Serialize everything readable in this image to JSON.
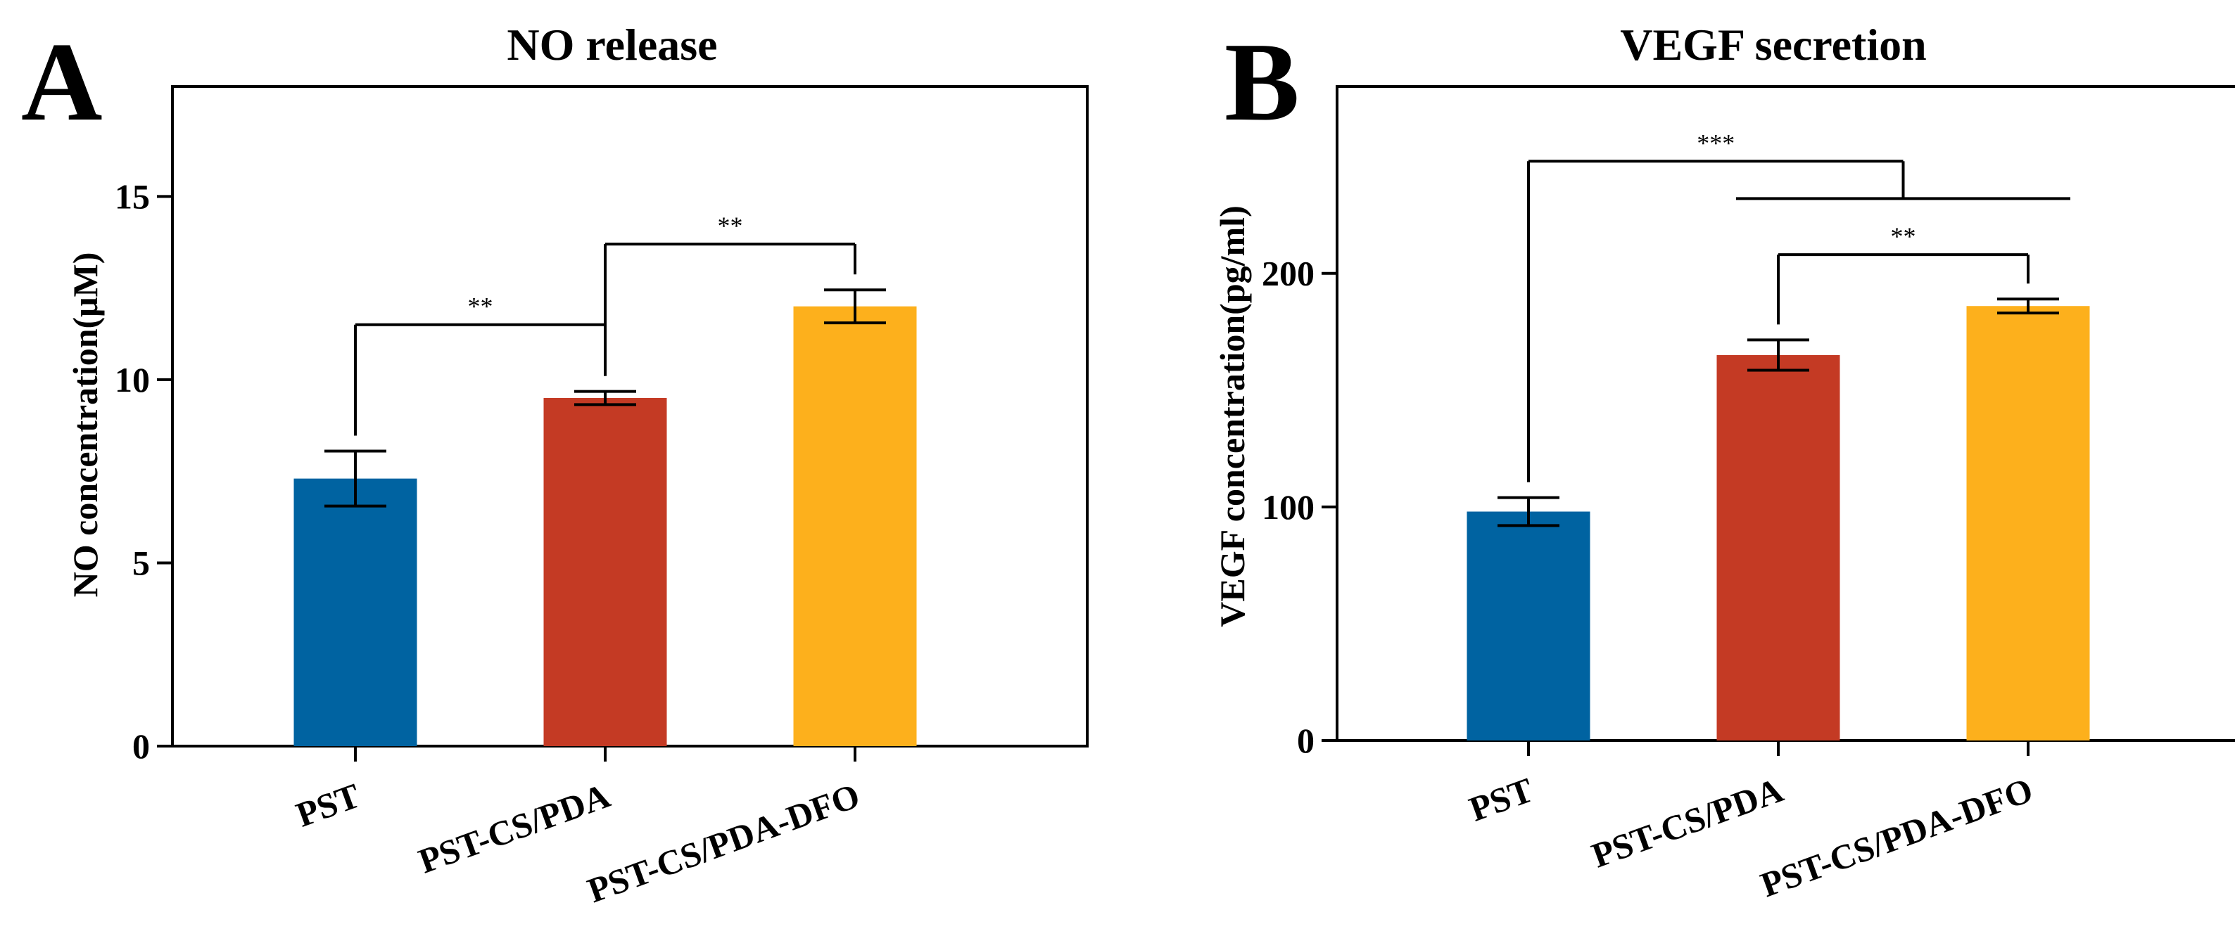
{
  "chart_data": [
    {
      "type": "bar",
      "panel_label": "A",
      "title": "NO release",
      "xlabel": "",
      "ylabel": "NO concentration(μM)",
      "ylim": [
        0,
        18
      ],
      "yticks": [
        0,
        5,
        10,
        15
      ],
      "categories": [
        "PST",
        "PST-CS/PDA",
        "PST-CS/PDA-DFO"
      ],
      "values": [
        7.3,
        9.5,
        12.0
      ],
      "errors": [
        0.75,
        0.18,
        0.45
      ],
      "colors": [
        "#0063a1",
        "#c43a24",
        "#fdb01c"
      ],
      "grid": false,
      "legend": "none",
      "significance": [
        {
          "from": 0,
          "to": 1,
          "label": "**",
          "y": 11.5
        },
        {
          "from": 1,
          "to": 2,
          "label": "**",
          "y": 13.7
        }
      ]
    },
    {
      "type": "bar",
      "panel_label": "B",
      "title": "VEGF secretion",
      "xlabel": "",
      "ylabel": "VEGF concentration(pg/ml)",
      "ylim": [
        0,
        280
      ],
      "yticks": [
        0,
        100,
        200
      ],
      "categories": [
        "PST",
        "PST-CS/PDA",
        "PST-CS/PDA-DFO"
      ],
      "values": [
        98,
        165,
        186
      ],
      "errors": [
        6,
        6.5,
        3
      ],
      "colors": [
        "#0063a1",
        "#c43a24",
        "#fdb01c"
      ],
      "grid": false,
      "legend": "none",
      "significance": [
        {
          "from": 0,
          "to": "1-2",
          "label": "***",
          "y": 248,
          "group_y": 232
        },
        {
          "from": 1,
          "to": 2,
          "label": "**",
          "y": 208
        }
      ]
    }
  ]
}
